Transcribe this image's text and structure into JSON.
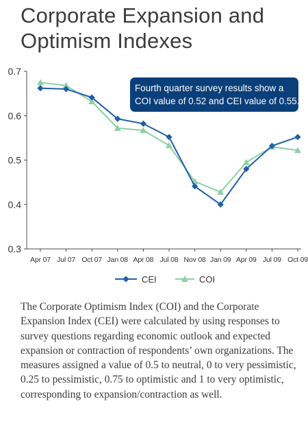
{
  "title": "Corporate Expansion and Optimism Indexes",
  "caption": "The Corporate Optimism Index (COI) and the Corporate Expansion Index (CEI) were calculated by using responses to survey questions regarding economic outlook and expected expansion or contraction of respondents’ own organizations. The measures assigned a value of 0.5 to neutral, 0 to very pessimistic, 0.25 to pessimistic, 0.75 to optimistic and 1 to very optimistic, corresponding to expansion/contraction as well.",
  "chart_data": {
    "type": "line",
    "title": "",
    "xlabel": "",
    "ylabel": "",
    "ylim": [
      0.3,
      0.7
    ],
    "yticks": [
      "0.3",
      "0.4",
      "0.5",
      "0.6",
      "0.7"
    ],
    "categories": [
      "Apr 07",
      "Jul 07",
      "Oct 07",
      "Jan 08",
      "Apr 08",
      "Jul 08",
      "Nov 08",
      "Jan 09",
      "Apr 09",
      "Jul 09",
      "Oct 09"
    ],
    "grid": false,
    "legend_position": "bottom-center",
    "series": [
      {
        "name": "CEI",
        "color": "#1f5fa8",
        "marker": "diamond",
        "values": [
          0.662,
          0.66,
          0.641,
          0.593,
          0.582,
          0.552,
          0.441,
          0.4,
          0.48,
          0.532,
          0.552
        ]
      },
      {
        "name": "COI",
        "color": "#8dd0a6",
        "marker": "triangle",
        "values": [
          0.675,
          0.668,
          0.632,
          0.572,
          0.567,
          0.533,
          0.452,
          0.428,
          0.495,
          0.53,
          0.522
        ]
      }
    ],
    "annotation": {
      "text_lines": [
        "Fourth quarter survey results show a",
        "COI value of 0.52 and CEI value of 0.55."
      ],
      "background": "#0b3f7a",
      "text_color": "#ffffff"
    }
  }
}
